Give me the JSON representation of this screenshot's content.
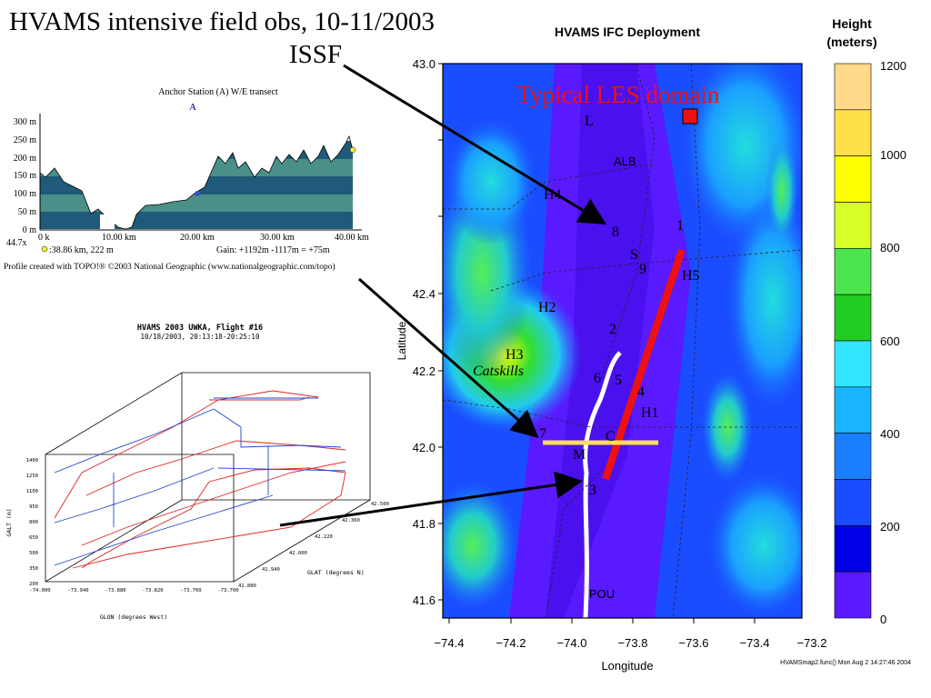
{
  "slide": {
    "title": "HVAMS intensive field obs, 10-11/2003",
    "issf_label": "ISSF"
  },
  "map": {
    "title": "HVAMS IFC Deployment",
    "domain_label": "Typical LES domain",
    "xlabel": "Longitude",
    "ylabel": "Latitude",
    "x_ticks": [
      "−74.4",
      "−74.2",
      "−74.0",
      "−73.8",
      "−73.6",
      "−73.4",
      "−73.2"
    ],
    "y_ticks": [
      "43.0",
      "42.4",
      "42.2",
      "42.0",
      "41.8",
      "41.6"
    ],
    "stations": [
      "L",
      "ALB",
      "H4",
      "8",
      "S",
      "9",
      "1",
      "H5",
      "H2",
      "2",
      "H3",
      "6",
      "5",
      "4",
      "H1",
      "7",
      "C",
      "M",
      "3",
      "POU"
    ],
    "region_label": "Catskills",
    "footer": "HVAMSmap2.func()  Mon Aug  2 14:27:46 2004",
    "colorbar": {
      "title_line1": "Height",
      "title_line2": "(meters)",
      "ticks": [
        "1200",
        "1000",
        "800",
        "600",
        "400",
        "200",
        "0"
      ],
      "colors": [
        "#ffd98a",
        "#ffe04a",
        "#ffff00",
        "#d8ff2a",
        "#4de54d",
        "#22cc22",
        "#33e6ff",
        "#1ab3ff",
        "#1a7fff",
        "#1a4dff",
        "#0000e6",
        "#5a1aff"
      ]
    }
  },
  "transect": {
    "title": "Anchor Station (A) W/E transect",
    "marker": "A",
    "y_ticks": [
      "300 m",
      "250 m",
      "200 m",
      "150 m",
      "100 m",
      "50 m",
      "0 m"
    ],
    "y_bottom_extra": "44.7x",
    "x_ticks": [
      "0 k",
      "10.00 km",
      "20.00 km",
      "30.00 km",
      "40.00 km"
    ],
    "readout": ":38.86 km, 222 m",
    "gain": "Gain: +1192m  -1117m = +75m",
    "credit": "Profile created with TOPO!® ©2003 National Geographic (www.nationalgeographic.com/topo)"
  },
  "flight": {
    "title": "HVAMS 2003 UWKA, Flight #16",
    "subtitle": "10/18/2003, 20:13:18-20:25:10",
    "z_label": "GALT (m)",
    "z_ticks": [
      "1400",
      "1250",
      "1100",
      "950",
      "800",
      "650",
      "500",
      "350",
      "200"
    ],
    "x_label": "GLON (degrees West)",
    "x_ticks": [
      "-74.000",
      "-73.940",
      "-73.880",
      "-73.820",
      "-73.760",
      "-73.700"
    ],
    "y_label": "GLAT (degrees N)",
    "y_ticks": [
      "41.880",
      "41.940",
      "42.000",
      "42.220",
      "42.360",
      "42.500"
    ]
  }
}
